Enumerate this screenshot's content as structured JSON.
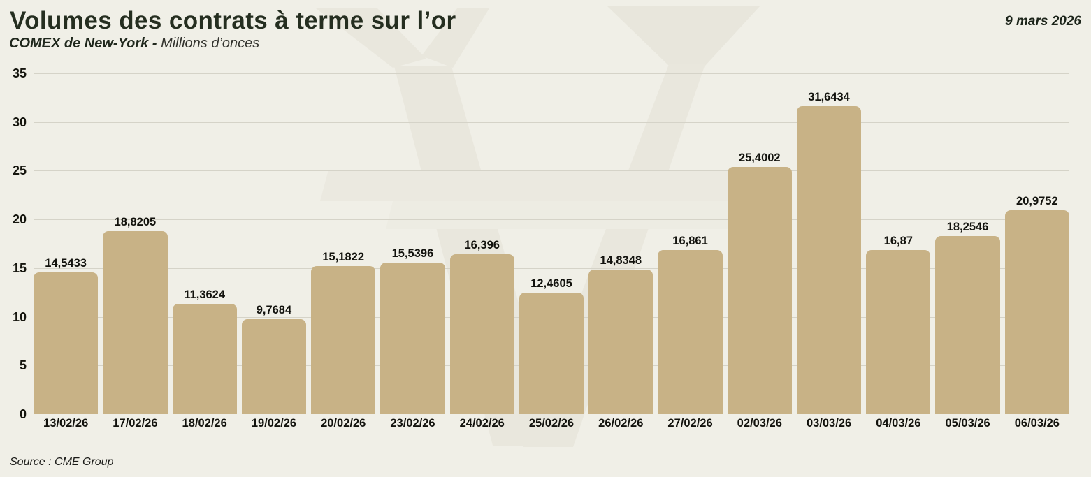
{
  "title": "Volumes des contrats à terme sur l’or",
  "subtitle": {
    "bold": "COMEX de New-York - ",
    "regular": "Millions d’onces"
  },
  "date": "9 mars 2026",
  "source": "Source : CME Group",
  "watermark": "yen-symbol-watermark",
  "colors": {
    "background": "#f0efe7",
    "bar": "#c8b286",
    "gridline": "#d5d3c8",
    "title_text": "#252e20",
    "label_text": "#12120d",
    "watermark_shape": "#eae8de"
  },
  "chart_data": {
    "type": "bar",
    "categories": [
      "13/02/26",
      "17/02/26",
      "18/02/26",
      "19/02/26",
      "20/02/26",
      "23/02/26",
      "24/02/26",
      "25/02/26",
      "26/02/26",
      "27/02/26",
      "02/03/26",
      "03/03/26",
      "04/03/26",
      "05/03/26",
      "06/03/26"
    ],
    "values": [
      14.5433,
      18.8205,
      11.3624,
      9.7684,
      15.1822,
      15.5396,
      16.396,
      12.4605,
      14.8348,
      16.861,
      25.4002,
      31.6434,
      16.87,
      18.2546,
      20.9752
    ],
    "value_labels": [
      "14,5433",
      "18,8205",
      "11,3624",
      "9,7684",
      "15,1822",
      "15,5396",
      "16,396",
      "12,4605",
      "14,8348",
      "16,861",
      "25,4002",
      "31,6434",
      "16,87",
      "18,2546",
      "20,9752"
    ],
    "title": "Volumes des contrats à terme sur l’or",
    "xlabel": "",
    "ylabel": "Millions d’onces",
    "ylim": [
      0,
      35
    ],
    "yticks": [
      0,
      5,
      10,
      15,
      20,
      25,
      30,
      35
    ],
    "grid": "horizontal",
    "legend": "none"
  }
}
